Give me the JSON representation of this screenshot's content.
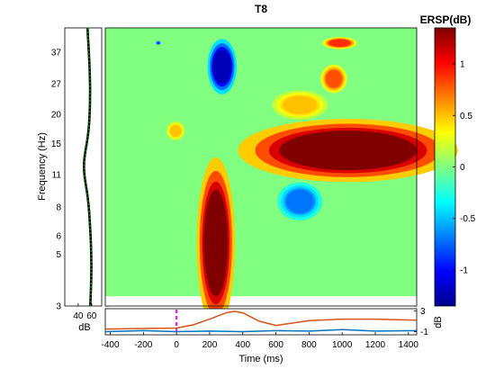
{
  "chart_data": {
    "type": "heatmap",
    "title": "T8",
    "ylabel": "Frequency (Hz)",
    "xlabel": "Time (ms)",
    "x_ticks": [
      -400,
      -200,
      0,
      200,
      400,
      600,
      800,
      1000,
      1200,
      1400
    ],
    "xlim": [
      -430,
      1450
    ],
    "y_ticks": [
      3,
      5,
      6,
      8,
      11,
      15,
      20,
      27,
      37
    ],
    "ylim_log": [
      3,
      47
    ],
    "colorbar": {
      "title": "ERSP(dB)",
      "label": "dB",
      "ticks": [
        -1,
        -0.5,
        0,
        0.5,
        1
      ],
      "range": [
        -1.35,
        1.35
      ],
      "colormap": "jet"
    },
    "baseline_panel": {
      "xlabel": "dB",
      "ticks": [
        40,
        60
      ],
      "line_color": "#008000"
    },
    "bottom_panel": {
      "yticks": [
        3,
        -1
      ],
      "ylabel": "dB",
      "event_marker_time": 0,
      "series": [
        {
          "color": "#d95319",
          "times": [
            -430,
            -200,
            0,
            100,
            200,
            300,
            350,
            400,
            500,
            600,
            800,
            1000,
            1200,
            1450
          ],
          "values": [
            -0.5,
            -0.4,
            -0.3,
            0.3,
            1.4,
            2.6,
            2.9,
            2.6,
            1.0,
            0.2,
            1.1,
            1.4,
            1.4,
            1.2
          ]
        },
        {
          "color": "#0072bd",
          "times": [
            -430,
            -200,
            0,
            200,
            400,
            600,
            800,
            1000,
            1200,
            1450
          ],
          "values": [
            -1.0,
            -0.8,
            -1.0,
            -0.9,
            -1.0,
            -0.8,
            -0.9,
            -0.6,
            -0.9,
            -0.8
          ]
        }
      ]
    },
    "regions": [
      {
        "desc": "strong synch",
        "t": [
          165,
          310
        ],
        "f": [
          3.3,
          9.5
        ],
        "v": 1.35
      },
      {
        "desc": "synch band",
        "t": [
          620,
          1450
        ],
        "f": [
          11.5,
          17
        ],
        "v": 1.35
      },
      {
        "desc": "desynch",
        "t": [
          220,
          330
        ],
        "f": [
          27,
          38
        ],
        "v": -1.2
      },
      {
        "desc": "desynch",
        "t": [
          -120,
          -100
        ],
        "f": [
          40,
          41
        ],
        "v": -0.9
      },
      {
        "desc": "desynch",
        "t": [
          660,
          830
        ],
        "f": [
          7.5,
          9.5
        ],
        "v": -0.7
      },
      {
        "desc": "synch",
        "t": [
          900,
          1000
        ],
        "f": [
          26,
          31
        ],
        "v": 0.8
      },
      {
        "desc": "synch",
        "t": [
          920,
          1050
        ],
        "f": [
          39,
          42
        ],
        "v": 0.9
      },
      {
        "desc": "synch",
        "t": [
          -40,
          30
        ],
        "f": [
          16,
          18
        ],
        "v": 0.5
      },
      {
        "desc": "synch",
        "t": [
          640,
          850
        ],
        "f": [
          20,
          24
        ],
        "v": 0.5
      }
    ]
  }
}
